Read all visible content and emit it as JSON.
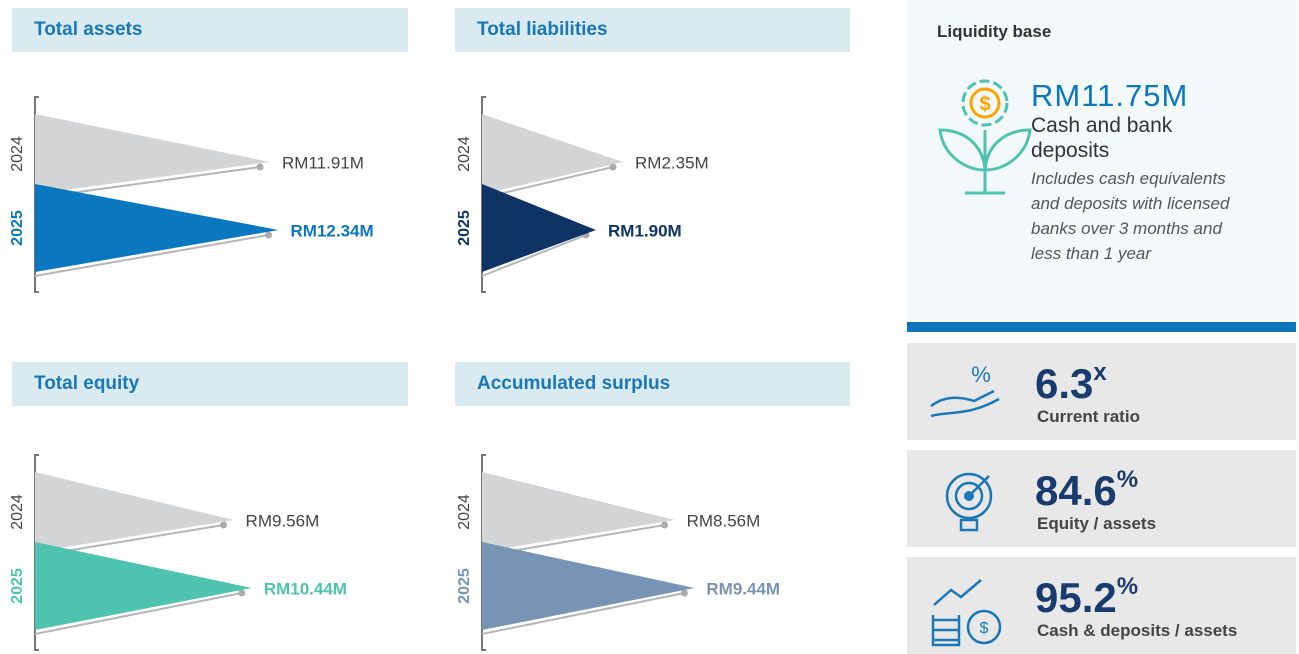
{
  "chart_data": [
    {
      "type": "triangle",
      "title": "Total assets",
      "categories": [
        "2024",
        "2025"
      ],
      "values": [
        11.91,
        12.34
      ],
      "value_labels": [
        "RM11.91M",
        "RM12.34M"
      ],
      "colors": [
        "#d3d4d6",
        "#0b77bf"
      ],
      "xlim": [
        0,
        15
      ]
    },
    {
      "type": "triangle",
      "title": "Total liabilities",
      "categories": [
        "2024",
        "2025"
      ],
      "values": [
        2.35,
        1.9
      ],
      "value_labels": [
        "RM2.35M",
        "RM1.90M"
      ],
      "colors": [
        "#d3d4d6",
        "#0d3465"
      ],
      "xlim": [
        0,
        4.5
      ]
    },
    {
      "type": "triangle",
      "title": "Total equity",
      "categories": [
        "2024",
        "2025"
      ],
      "values": [
        9.56,
        10.44
      ],
      "value_labels": [
        "RM9.56M",
        "RM10.44M"
      ],
      "colors": [
        "#d3d4d6",
        "#4ec3b0"
      ],
      "xlim": [
        0,
        13
      ]
    },
    {
      "type": "triangle",
      "title": "Accumulated surplus",
      "categories": [
        "2024",
        "2025"
      ],
      "values": [
        8.56,
        9.44
      ],
      "value_labels": [
        "RM8.56M",
        "RM9.44M"
      ],
      "colors": [
        "#d3d4d6",
        "#7894b4"
      ],
      "xlim": [
        0,
        12
      ]
    }
  ],
  "side_panel": {
    "title": "Liquidity base",
    "amount": "RM11.75M",
    "amount_label": "Cash and bank deposits",
    "note": "Includes cash equivalents and deposits with licensed banks over 3 months and less than 1 year",
    "kpis": [
      {
        "value": "6.3",
        "unit": "x",
        "label": "Current ratio"
      },
      {
        "value": "84.6",
        "unit": "%",
        "label": "Equity / assets"
      },
      {
        "value": "95.2",
        "unit": "%",
        "label": "Cash & deposits / assets"
      }
    ]
  }
}
